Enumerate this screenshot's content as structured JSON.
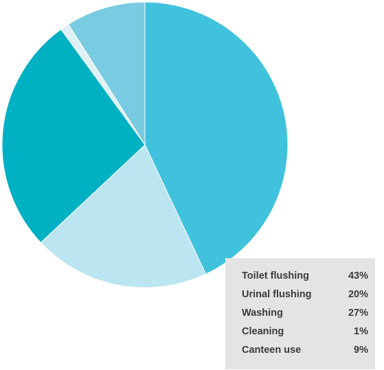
{
  "chart_data": {
    "type": "pie",
    "title": "",
    "slices": [
      {
        "label": "Toilet flushing",
        "value": 43,
        "display": "43%",
        "color": "#40c2dc"
      },
      {
        "label": "Urinal flushing",
        "value": 20,
        "display": "20%",
        "color": "#bae5f1"
      },
      {
        "label": "Washing",
        "value": 27,
        "display": "27%",
        "color": "#00b0c3"
      },
      {
        "label": "Cleaning",
        "value": 1,
        "display": "1%",
        "color": "#ddf1f7"
      },
      {
        "label": "Canteen use",
        "value": 9,
        "display": "9%",
        "color": "#78cbe0"
      }
    ],
    "start": "12 o'clock",
    "direction": "clockwise",
    "legend_position": "bottom-right"
  }
}
